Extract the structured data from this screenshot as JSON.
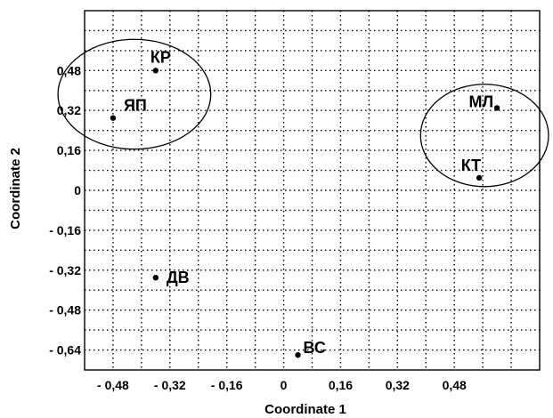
{
  "chart_data": {
    "type": "scatter",
    "title": "",
    "xlabel": "Coordinate 1",
    "ylabel": "Coordinate 2",
    "xlim": [
      -0.56,
      0.72
    ],
    "ylim": [
      -0.72,
      0.72
    ],
    "grid": true,
    "xticks": [
      -0.48,
      -0.32,
      -0.16,
      0,
      0.16,
      0.32,
      0.48
    ],
    "xtick_labels": [
      "- 0,48",
      "- 0,32",
      "- 0,16",
      "0",
      "0,16",
      "0,32",
      "0,48"
    ],
    "yticks": [
      0.48,
      0.32,
      0.16,
      0,
      -0.16,
      -0.32,
      -0.48,
      -0.64
    ],
    "ytick_labels": [
      "0,48",
      "0,32",
      "0,16",
      "0",
      "- 0,16",
      "- 0,32",
      "- 0,48",
      "- 0,64"
    ],
    "points": [
      {
        "label": "КР",
        "x": -0.36,
        "y": 0.48
      },
      {
        "label": "ЯП",
        "x": -0.48,
        "y": 0.29
      },
      {
        "label": "МЛ",
        "x": 0.6,
        "y": 0.33
      },
      {
        "label": "КТ",
        "x": 0.55,
        "y": 0.05
      },
      {
        "label": "ДВ",
        "x": -0.36,
        "y": -0.35
      },
      {
        "label": "ВС",
        "x": 0.04,
        "y": -0.66
      }
    ],
    "clusters": [
      {
        "members": [
          "КР",
          "ЯП"
        ],
        "cx": -0.42,
        "cy": 0.385,
        "rx": 0.215,
        "ry": 0.22
      },
      {
        "members": [
          "МЛ",
          "КТ"
        ],
        "cx": 0.565,
        "cy": 0.22,
        "rx": 0.18,
        "ry": 0.205
      }
    ]
  }
}
